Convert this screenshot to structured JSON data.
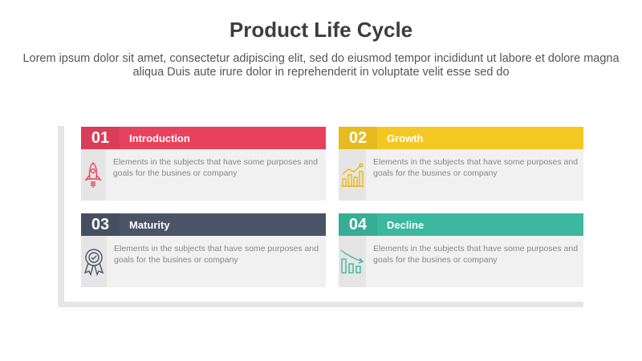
{
  "title": "Product Life Cycle",
  "subtitle": "Lorem ipsum dolor sit amet, consectetur adipiscing elit, sed do eiusmod tempor incididunt ut labore et dolore magna aliqua Duis aute irure dolor in reprehenderit in voluptate velit esse sed do",
  "cards": [
    {
      "number": "01",
      "label": "Introduction",
      "text": "Elements in the subjects that have some purposes and goals for the  busines or company",
      "color": "#e8415e",
      "icon": "rocket-icon"
    },
    {
      "number": "02",
      "label": "Growth",
      "text": "Elements in the subjects that have some purposes and goals for the  busines or company",
      "color": "#f5c722",
      "icon": "growth-chart-icon"
    },
    {
      "number": "03",
      "label": "Maturity",
      "text": "Elements in the subjects that have some purposes and goals for the  busines or company",
      "color": "#4b5466",
      "icon": "award-badge-icon"
    },
    {
      "number": "04",
      "label": "Decline",
      "text": "Elements in the subjects that have some purposes and goals for the  busines or company",
      "color": "#3bb89e",
      "icon": "decline-chart-icon"
    }
  ]
}
